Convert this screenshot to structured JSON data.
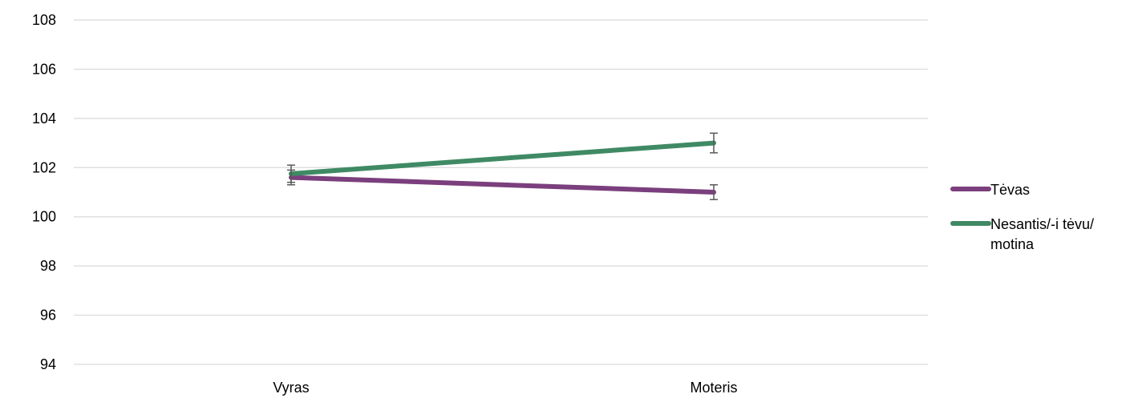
{
  "chart_data": {
    "type": "line",
    "categories": [
      "Vyras",
      "Moteris"
    ],
    "ylim": [
      94,
      108
    ],
    "yticks": [
      94,
      96,
      98,
      100,
      102,
      104,
      106,
      108
    ],
    "grid": true,
    "legend_position": "right",
    "series": [
      {
        "name": "Tėvas",
        "color": "#7b3f7d",
        "values": [
          101.6,
          101.0
        ],
        "error_low": [
          101.3,
          100.7
        ],
        "error_high": [
          101.9,
          101.3
        ]
      },
      {
        "name": "Nesantis/-i tėvu/\nmotina",
        "legend_lines": [
          "Nesantis/-i tėvu/",
          "motina"
        ],
        "color": "#3f8a64",
        "values": [
          101.75,
          103.0
        ],
        "error_low": [
          101.4,
          102.6
        ],
        "error_high": [
          102.1,
          103.4
        ]
      }
    ]
  }
}
